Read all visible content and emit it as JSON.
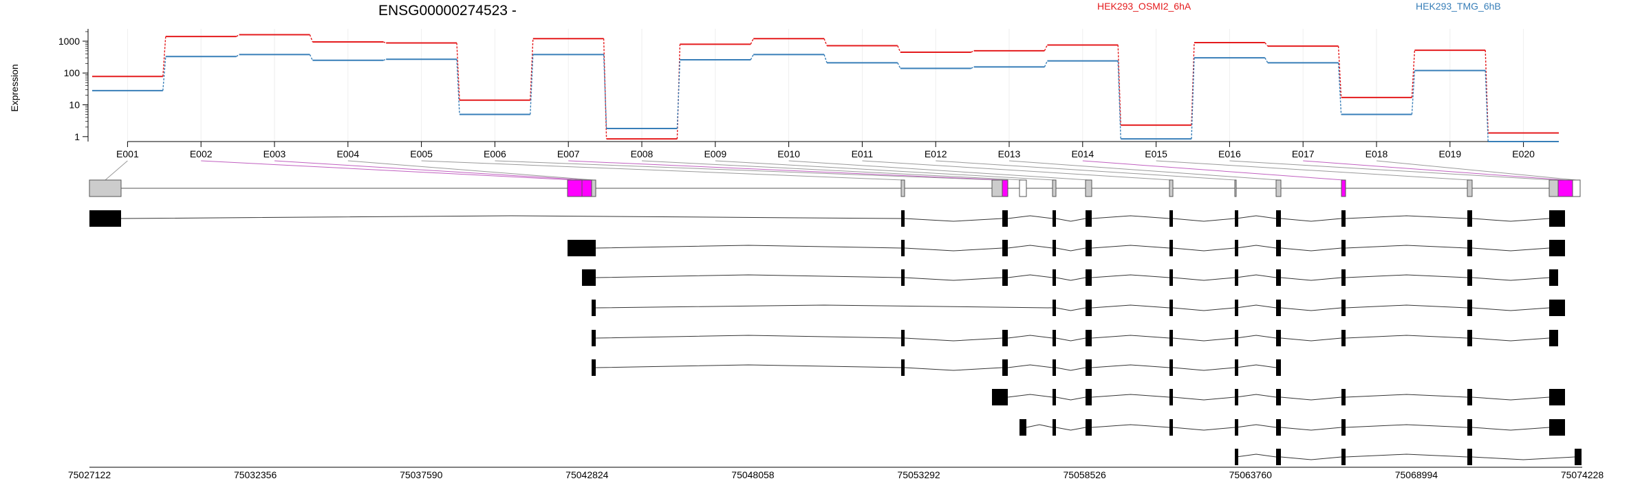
{
  "chart_data": {
    "type": "line",
    "title": "ENSG00000274523 -",
    "ylabel": "Expression",
    "yscale": "log",
    "ylim": [
      0.7,
      2000
    ],
    "yticks": [
      1,
      10,
      100,
      1000
    ],
    "ytick_labels": [
      "1",
      "10",
      "100",
      "1000"
    ],
    "categories": [
      "E001",
      "E002",
      "E003",
      "E004",
      "E005",
      "E006",
      "E007",
      "E008",
      "E009",
      "E010",
      "E011",
      "E012",
      "E013",
      "E014",
      "E015",
      "E016",
      "E017",
      "E018",
      "E019",
      "E020"
    ],
    "series": [
      {
        "name": "HEK293_OSMI2_6hA",
        "color": "#e41a1c",
        "values": [
          78,
          1400,
          1600,
          950,
          880,
          14,
          1200,
          0.85,
          800,
          1200,
          720,
          450,
          500,
          760,
          2.3,
          900,
          700,
          17,
          520,
          1.3
        ]
      },
      {
        "name": "HEK293_TMG_6hB",
        "color": "#377eb8",
        "values": [
          28,
          330,
          380,
          250,
          270,
          5,
          380,
          1.8,
          260,
          380,
          210,
          140,
          155,
          240,
          0.85,
          300,
          210,
          5,
          120,
          0.7
        ]
      }
    ],
    "exon_color": "#ff00ff",
    "intron_color": "#808080",
    "genomic_coords": [
      "75027122",
      "75032356",
      "75037590",
      "75042824",
      "75048058",
      "75053292",
      "75058526",
      "75063760",
      "75068994",
      "75074228"
    ],
    "transcript_count": 9
  }
}
